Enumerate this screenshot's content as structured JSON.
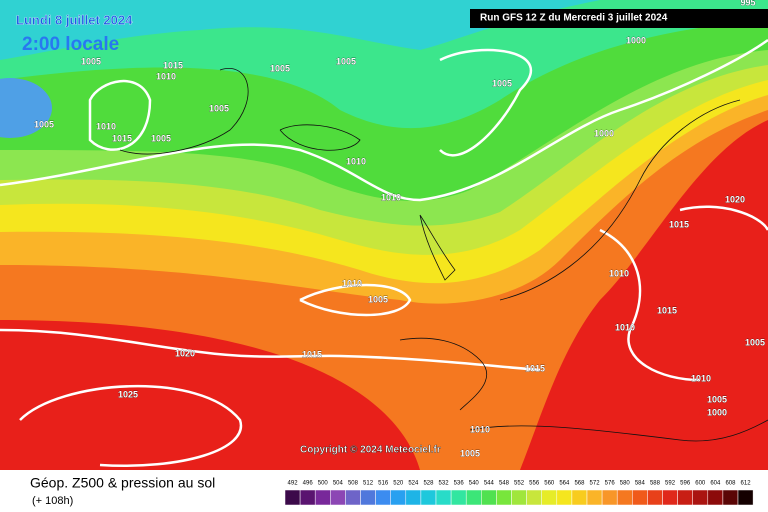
{
  "header": {
    "date": "Lundi 8 juillet 2024",
    "time": "2:00 locale",
    "run": "Run GFS 12 Z du Mercredi 3 juillet 2024"
  },
  "isobar_labels": [
    "995",
    "1000",
    "1005",
    "1015",
    "1010",
    "1005",
    "1005",
    "1005",
    "1005",
    "1005",
    "1010",
    "1015",
    "1005",
    "1000",
    "1010",
    "1010",
    "1020",
    "1015",
    "1010",
    "1010",
    "1005",
    "1015",
    "1010",
    "1005",
    "1020",
    "1015",
    "1015",
    "1010",
    "1025",
    "1005",
    "1000",
    "1010",
    "1005"
  ],
  "copyright": "Copyright © 2024 Meteociel.fr",
  "footer": {
    "title": "Géop. Z500 & pression au sol",
    "lead": "(+ 108h)"
  },
  "colorbar": {
    "labels": [
      "492",
      "496",
      "500",
      "504",
      "508",
      "512",
      "516",
      "520",
      "524",
      "528",
      "532",
      "536",
      "540",
      "544",
      "548",
      "552",
      "556",
      "560",
      "564",
      "568",
      "572",
      "576",
      "580",
      "584",
      "588",
      "592",
      "596",
      "600",
      "604",
      "608",
      "612"
    ],
    "colors": [
      "#3c0a4a",
      "#5a1470",
      "#78289a",
      "#8c46b4",
      "#6e64c8",
      "#5078dc",
      "#3c8cf0",
      "#28a0f0",
      "#1eb4e6",
      "#1ec8dc",
      "#28dcc8",
      "#32e6a0",
      "#3ce678",
      "#50e150",
      "#78e63c",
      "#a0e63c",
      "#c8e63c",
      "#e6ec28",
      "#f5e61e",
      "#f8cc1e",
      "#fab428",
      "#f89628",
      "#f57820",
      "#f05a1a",
      "#e8401a",
      "#e0281a",
      "#c81e14",
      "#aa1410",
      "#8c0a0a",
      "#5a0505",
      "#140000"
    ]
  }
}
